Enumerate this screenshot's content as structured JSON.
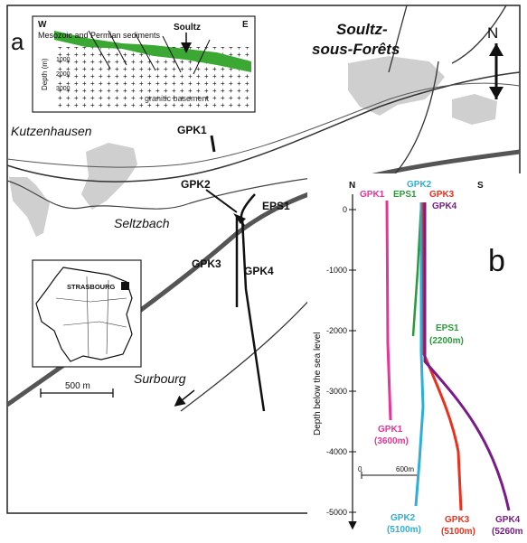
{
  "map": {
    "panel_letter": "a",
    "north_label": "N",
    "towns": {
      "soultz_line1": "Soultz-",
      "soultz_line2": "sous-Forêts",
      "kutzenhausen": "Kutzenhausen",
      "surbourg": "Surbourg"
    },
    "river": "Seltzbach",
    "wells": {
      "gpk1": "GPK1",
      "gpk2": "GPK2",
      "gpk3": "GPK3",
      "gpk4": "GPK4",
      "eps1": "EPS1"
    },
    "scale_bar": "500 m",
    "inset_france": {
      "city": "STRASBOURG"
    },
    "cross_section": {
      "west": "W",
      "east": "E",
      "site": "Soultz",
      "sediments": "Mesozoic and Permian sediments",
      "depth_axis": "Depth (m)",
      "depth_ticks": [
        "1000",
        "2000",
        "3000"
      ],
      "basement": "granitic basement"
    }
  },
  "profile": {
    "panel_letter": "b",
    "north": "N",
    "south": "S",
    "ylabel": "Depth below the sea level",
    "yticks": [
      "0",
      "-1000",
      "-2000",
      "-3000",
      "-4000",
      "-5000"
    ],
    "scale_zero": "0",
    "scale_len": "600m",
    "top_labels": {
      "gpk1": "GPK1",
      "eps1": "EPS1",
      "gpk2": "GPK2",
      "gpk3": "GPK3",
      "gpk4": "GPK4"
    },
    "bottom_labels": {
      "gpk1_name": "GPK1",
      "gpk1_depth": "(3600m)",
      "eps1_name": "EPS1",
      "eps1_depth": "(2200m)",
      "gpk2_name": "GPK2",
      "gpk2_depth": "(5100m)",
      "gpk3_name": "GPK3",
      "gpk3_depth": "(5100m)",
      "gpk4_name": "GPK4",
      "gpk4_depth": "(5260m"
    }
  },
  "colors": {
    "gpk1": "#e8339a",
    "eps1": "#2a9a3a",
    "gpk2": "#2eaed8",
    "gpk3": "#e8321e",
    "gpk4": "#7b1a8a",
    "sediment": "#3aa832",
    "town": "#cfcfcf"
  },
  "chart_data": {
    "type": "line",
    "title": "",
    "xlabel": "",
    "ylabel": "Depth below the sea level",
    "ylim": [
      -5000,
      0
    ],
    "series": [
      {
        "name": "GPK1",
        "total_depth_m": 3600
      },
      {
        "name": "EPS1",
        "total_depth_m": 2200
      },
      {
        "name": "GPK2",
        "total_depth_m": 5100
      },
      {
        "name": "GPK3",
        "total_depth_m": 5100
      },
      {
        "name": "GPK4",
        "total_depth_m": 5260
      }
    ]
  }
}
